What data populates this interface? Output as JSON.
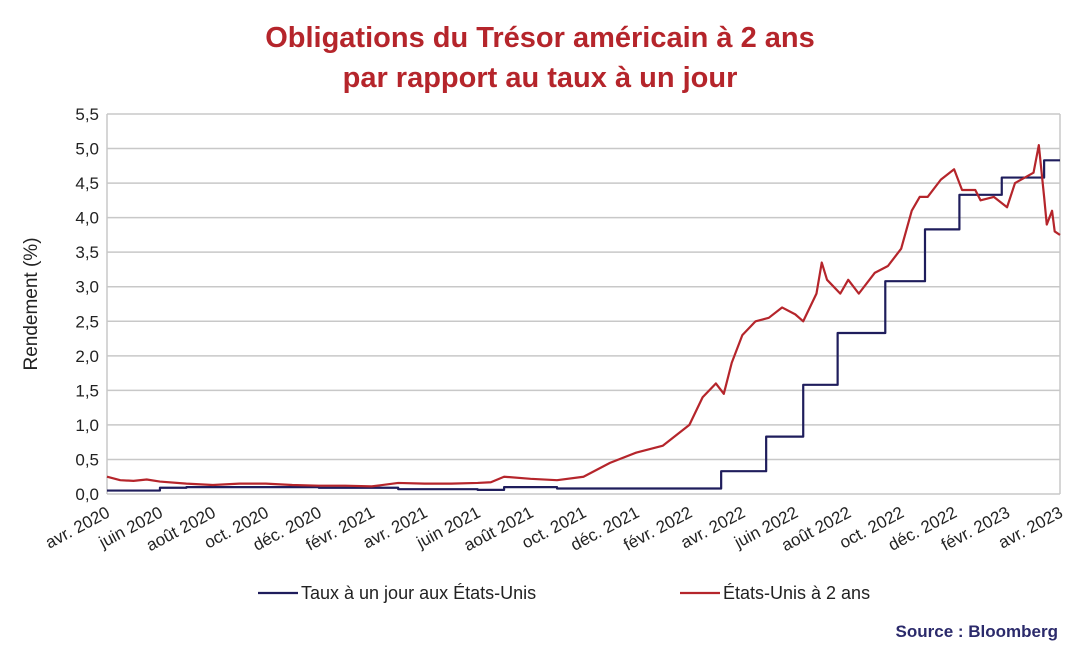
{
  "chart_data": {
    "type": "line",
    "title": [
      "Obligations du Trésor américain à 2 ans",
      "par rapport au taux à un jour"
    ],
    "ylabel": "Rendement (%)",
    "xlabel": "",
    "ylim": [
      0,
      5.5
    ],
    "yticks": [
      "0,0",
      "0,5",
      "1,0",
      "1,5",
      "2,0",
      "2,5",
      "3,0",
      "3,5",
      "4,0",
      "4,5",
      "5,0",
      "5,5"
    ],
    "xlim_months_from_apr2020": [
      0,
      36
    ],
    "xticks": [
      "avr. 2020",
      "juin 2020",
      "août 2020",
      "oct. 2020",
      "déc. 2020",
      "févr. 2021",
      "avr. 2021",
      "juin 2021",
      "août 2021",
      "oct. 2021",
      "déc. 2021",
      "févr. 2022",
      "avr. 2022",
      "juin 2022",
      "août 2022",
      "oct. 2022",
      "déc. 2022",
      "févr. 2023",
      "avr. 2023"
    ],
    "grid": true,
    "legend_position": "bottom",
    "series": [
      {
        "name": "Taux à un jour aux États-Unis",
        "color": "#1f1d5c",
        "step": true,
        "x": [
          0,
          1.5,
          2,
          3,
          8,
          11,
          12,
          14,
          15,
          16,
          17,
          18,
          23.2,
          24.9,
          26.3,
          27.6,
          29.4,
          30.9,
          32.2,
          33.8,
          35.4,
          36
        ],
        "y": [
          0.05,
          0.05,
          0.09,
          0.1,
          0.09,
          0.07,
          0.07,
          0.06,
          0.1,
          0.1,
          0.08,
          0.08,
          0.33,
          0.83,
          1.58,
          2.33,
          3.08,
          3.83,
          4.33,
          4.58,
          4.83,
          4.83
        ]
      },
      {
        "name": "États-Unis à 2 ans",
        "color": "#b5252b",
        "step": false,
        "x": [
          0,
          0.5,
          1,
          1.5,
          2,
          3,
          4,
          5,
          6,
          7,
          8,
          9,
          10,
          11,
          12,
          13,
          14,
          14.5,
          15,
          16,
          17,
          18,
          19,
          20,
          21,
          22,
          22.5,
          23,
          23.3,
          23.6,
          24,
          24.5,
          25,
          25.5,
          26,
          26.3,
          26.8,
          27,
          27.2,
          27.7,
          28,
          28.4,
          29,
          29.5,
          30,
          30.4,
          30.7,
          31,
          31.5,
          32,
          32.3,
          32.8,
          33,
          33.5,
          34,
          34.3,
          35,
          35.2,
          35.4,
          35.5,
          35.7,
          35.8,
          36
        ],
        "y": [
          0.25,
          0.2,
          0.19,
          0.21,
          0.18,
          0.15,
          0.13,
          0.15,
          0.15,
          0.13,
          0.12,
          0.12,
          0.11,
          0.16,
          0.15,
          0.15,
          0.16,
          0.17,
          0.25,
          0.22,
          0.2,
          0.25,
          0.45,
          0.6,
          0.7,
          1.0,
          1.4,
          1.6,
          1.45,
          1.9,
          2.3,
          2.5,
          2.55,
          2.7,
          2.6,
          2.5,
          2.9,
          3.35,
          3.1,
          2.9,
          3.1,
          2.9,
          3.2,
          3.3,
          3.55,
          4.1,
          4.3,
          4.3,
          4.55,
          4.7,
          4.4,
          4.4,
          4.25,
          4.3,
          4.15,
          4.5,
          4.65,
          5.05,
          4.3,
          3.9,
          4.1,
          3.8,
          3.75
        ]
      }
    ],
    "source": "Source : Bloomberg"
  }
}
